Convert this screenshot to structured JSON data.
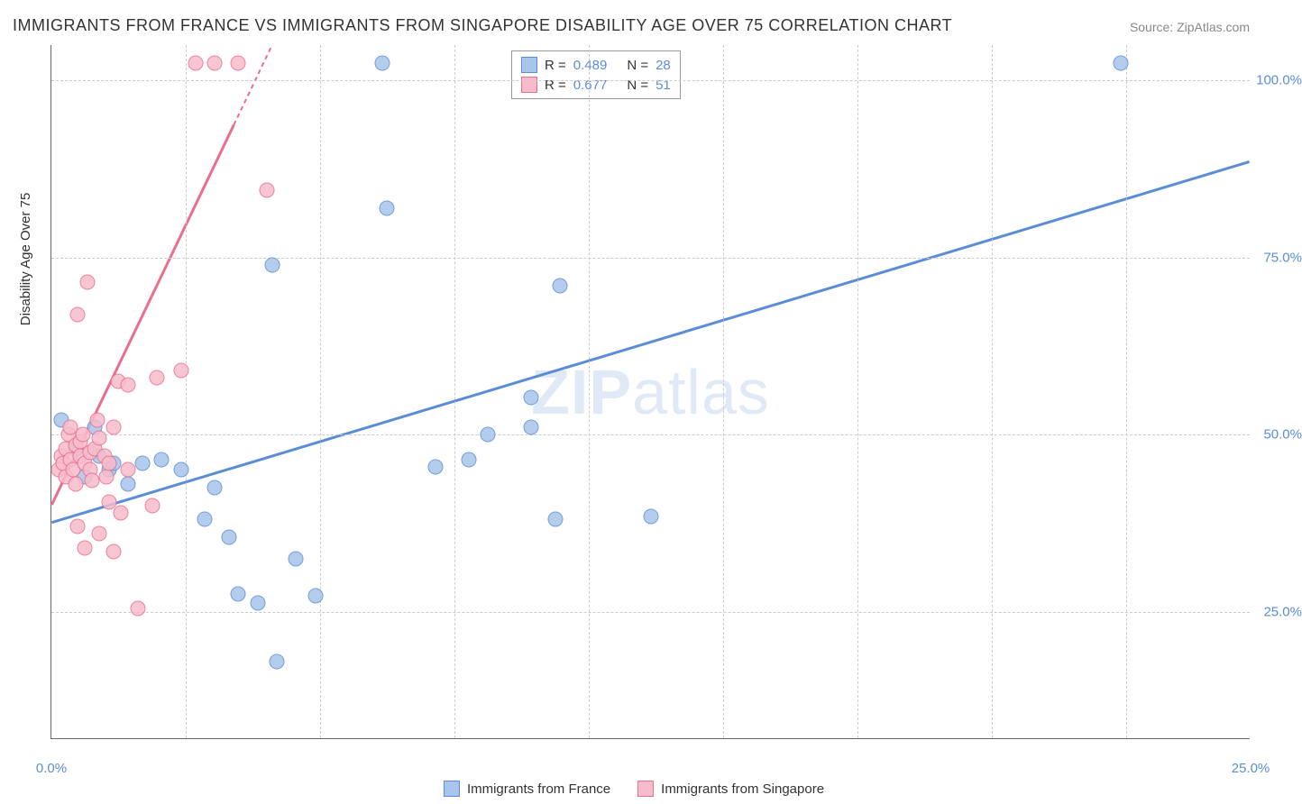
{
  "title": "IMMIGRANTS FROM FRANCE VS IMMIGRANTS FROM SINGAPORE DISABILITY AGE OVER 75 CORRELATION CHART",
  "source_prefix": "Source: ",
  "source_name": "ZipAtlas.com",
  "ylabel": "Disability Age Over 75",
  "watermark_a": "ZIP",
  "watermark_b": "atlas",
  "chart": {
    "type": "scatter",
    "x_range": [
      0,
      25
    ],
    "y_range": [
      7,
      105
    ],
    "x_ticks": [
      0,
      25
    ],
    "x_tick_labels": [
      "0.0%",
      "25.0%"
    ],
    "y_ticks": [
      25,
      50,
      75,
      100
    ],
    "y_tick_labels": [
      "25.0%",
      "50.0%",
      "75.0%",
      "100.0%"
    ],
    "v_grid_positions": [
      2.8,
      5.6,
      8.4,
      11.2,
      14.0,
      16.8,
      19.6,
      22.4
    ],
    "background_color": "#ffffff",
    "grid_color": "#cccccc",
    "axis_color": "#666666",
    "tick_label_color": "#5b8dd6",
    "marker_radius": 8.5,
    "marker_fill_opacity": 0.4,
    "series": [
      {
        "name": "Immigrants from France",
        "color": "#5b8dd6",
        "fill": "#a9c5eb",
        "R": "0.489",
        "N": "28",
        "trend": {
          "x1": 0,
          "y1": 37.5,
          "x2": 25,
          "y2": 88.5
        },
        "points": [
          [
            0.2,
            52
          ],
          [
            0.5,
            48
          ],
          [
            0.7,
            44
          ],
          [
            0.9,
            51
          ],
          [
            1.0,
            47
          ],
          [
            1.2,
            45
          ],
          [
            1.3,
            46
          ],
          [
            1.6,
            43
          ],
          [
            1.9,
            46
          ],
          [
            2.3,
            46.5
          ],
          [
            2.7,
            45
          ],
          [
            3.2,
            38
          ],
          [
            3.4,
            42.5
          ],
          [
            3.7,
            35.5
          ],
          [
            3.9,
            27.5
          ],
          [
            4.3,
            26.2
          ],
          [
            4.6,
            74
          ],
          [
            4.7,
            18
          ],
          [
            5.1,
            32.5
          ],
          [
            5.5,
            27.2
          ],
          [
            6.9,
            102.5
          ],
          [
            7.0,
            82
          ],
          [
            8.0,
            45.5
          ],
          [
            8.7,
            46.5
          ],
          [
            9.1,
            50
          ],
          [
            10.0,
            55.2
          ],
          [
            10.0,
            51
          ],
          [
            10.5,
            38
          ],
          [
            10.6,
            71
          ],
          [
            12.5,
            38.5
          ],
          [
            22.3,
            102.5
          ]
        ]
      },
      {
        "name": "Immigrants from Singapore",
        "color": "#ec6e8c",
        "fill": "#f7bccb",
        "R": "0.677",
        "N": "51",
        "trend": {
          "x1": 0,
          "y1": 40,
          "x2": 4.6,
          "y2": 105
        },
        "trend_dash_from_x": 3.8,
        "points": [
          [
            0.15,
            45
          ],
          [
            0.2,
            47
          ],
          [
            0.25,
            46
          ],
          [
            0.3,
            48
          ],
          [
            0.3,
            44
          ],
          [
            0.35,
            50
          ],
          [
            0.4,
            46.5
          ],
          [
            0.4,
            51
          ],
          [
            0.45,
            45
          ],
          [
            0.5,
            48.5
          ],
          [
            0.5,
            43
          ],
          [
            0.55,
            37
          ],
          [
            0.55,
            67
          ],
          [
            0.6,
            47
          ],
          [
            0.6,
            49
          ],
          [
            0.65,
            50
          ],
          [
            0.7,
            46
          ],
          [
            0.7,
            34
          ],
          [
            0.75,
            71.5
          ],
          [
            0.8,
            47.5
          ],
          [
            0.8,
            45
          ],
          [
            0.85,
            43.5
          ],
          [
            0.9,
            48
          ],
          [
            0.95,
            52
          ],
          [
            1.0,
            49.5
          ],
          [
            1.0,
            36
          ],
          [
            1.1,
            47
          ],
          [
            1.15,
            44
          ],
          [
            1.2,
            46
          ],
          [
            1.2,
            40.5
          ],
          [
            1.3,
            51
          ],
          [
            1.3,
            33.5
          ],
          [
            1.4,
            57.5
          ],
          [
            1.45,
            39
          ],
          [
            1.6,
            57
          ],
          [
            1.6,
            45
          ],
          [
            1.8,
            25.5
          ],
          [
            2.1,
            40
          ],
          [
            2.2,
            58
          ],
          [
            2.7,
            59
          ],
          [
            3.0,
            102.5
          ],
          [
            3.4,
            102.5
          ],
          [
            3.9,
            102.5
          ],
          [
            4.5,
            84.5
          ]
        ]
      }
    ]
  },
  "legend_top": {
    "rows": [
      {
        "swatch": 0,
        "r_label": "R =",
        "r_value": "0.489",
        "n_label": "N =",
        "n_value": "28"
      },
      {
        "swatch": 1,
        "r_label": "R =",
        "r_value": "0.677",
        "n_label": "N =",
        "n_value": "51"
      }
    ]
  },
  "legend_bottom": {
    "items": [
      {
        "swatch": 0,
        "label": "Immigrants from France"
      },
      {
        "swatch": 1,
        "label": "Immigrants from Singapore"
      }
    ]
  }
}
